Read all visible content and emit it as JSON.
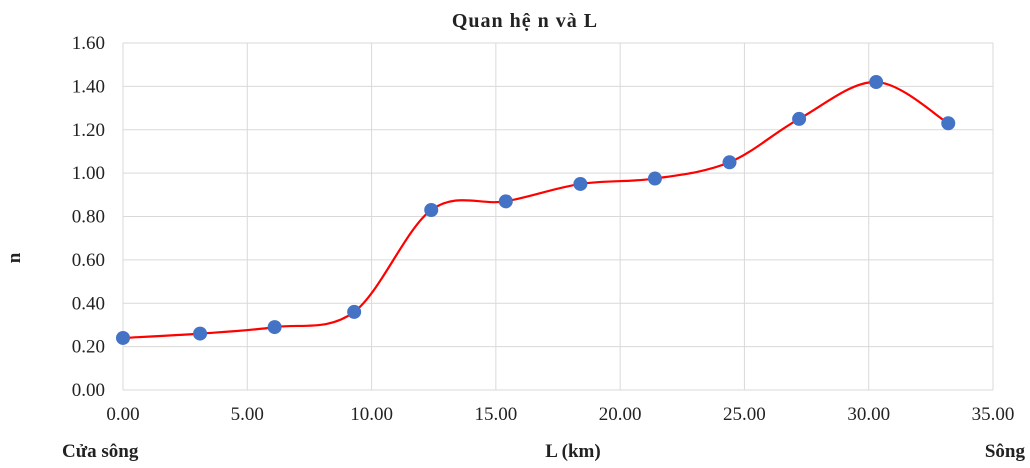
{
  "chart_data": {
    "type": "scatter",
    "title": "Quan hệ n và L",
    "xlabel": "L (km)",
    "ylabel": "n",
    "xlim": [
      0,
      35
    ],
    "ylim": [
      0,
      1.6
    ],
    "x_ticks": [
      "0.00",
      "5.00",
      "10.00",
      "15.00",
      "20.00",
      "25.00",
      "30.00",
      "35.00"
    ],
    "y_ticks": [
      "0.00",
      "0.20",
      "0.40",
      "0.60",
      "0.80",
      "1.00",
      "1.20",
      "1.40",
      "1.60"
    ],
    "grid": true,
    "smooth_line": true,
    "line_color": "#ff0000",
    "marker_color": "#4472c4",
    "series": [
      {
        "x": [
          0.0,
          3.1,
          6.1,
          9.3,
          12.4,
          15.4,
          18.4,
          21.4,
          24.4,
          27.2,
          30.3,
          33.2
        ],
        "y": [
          0.24,
          0.26,
          0.29,
          0.36,
          0.83,
          0.87,
          0.95,
          0.975,
          1.05,
          1.25,
          1.42,
          1.23
        ]
      }
    ],
    "annotations": {
      "left": "Cửa sông",
      "right": "Sông"
    }
  }
}
